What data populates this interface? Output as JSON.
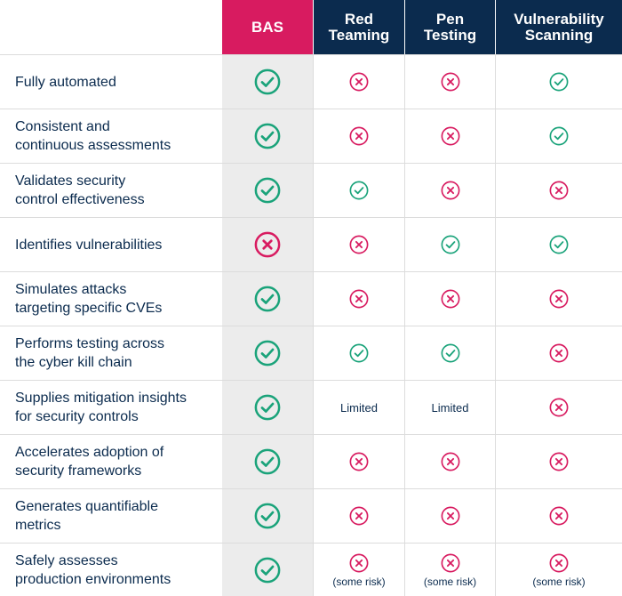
{
  "colors": {
    "brand_pink": "#d81b60",
    "navy": "#0b2b4e",
    "check_green": "#1aa37a",
    "cross_pink": "#d81b60",
    "bas_column_bg": "#ececec"
  },
  "header": {
    "bas": "BAS",
    "col1": "Red\nTeaming",
    "col2": "Pen\nTesting",
    "col3": "Vulnerability\nScanning"
  },
  "rows": [
    {
      "label": "Fully automated",
      "cells": [
        {
          "type": "check"
        },
        {
          "type": "cross"
        },
        {
          "type": "cross"
        },
        {
          "type": "check"
        }
      ]
    },
    {
      "label": "Consistent and\ncontinuous assessments",
      "cells": [
        {
          "type": "check"
        },
        {
          "type": "cross"
        },
        {
          "type": "cross"
        },
        {
          "type": "check"
        }
      ]
    },
    {
      "label": "Validates security\ncontrol effectiveness",
      "cells": [
        {
          "type": "check"
        },
        {
          "type": "check"
        },
        {
          "type": "cross"
        },
        {
          "type": "cross"
        }
      ]
    },
    {
      "label": "Identifies vulnerabilities",
      "cells": [
        {
          "type": "cross"
        },
        {
          "type": "cross"
        },
        {
          "type": "check"
        },
        {
          "type": "check"
        }
      ]
    },
    {
      "label": "Simulates attacks\ntargeting specific CVEs",
      "cells": [
        {
          "type": "check"
        },
        {
          "type": "cross"
        },
        {
          "type": "cross"
        },
        {
          "type": "cross"
        }
      ]
    },
    {
      "label": "Performs testing across\nthe cyber kill chain",
      "cells": [
        {
          "type": "check"
        },
        {
          "type": "check"
        },
        {
          "type": "check"
        },
        {
          "type": "cross"
        }
      ]
    },
    {
      "label": "Supplies mitigation insights\nfor security controls",
      "cells": [
        {
          "type": "check"
        },
        {
          "type": "text",
          "text": "Limited"
        },
        {
          "type": "text",
          "text": "Limited"
        },
        {
          "type": "cross"
        }
      ]
    },
    {
      "label": "Accelerates adoption of\nsecurity frameworks",
      "cells": [
        {
          "type": "check"
        },
        {
          "type": "cross"
        },
        {
          "type": "cross"
        },
        {
          "type": "cross"
        }
      ]
    },
    {
      "label": "Generates quantifiable\nmetrics",
      "cells": [
        {
          "type": "check"
        },
        {
          "type": "cross"
        },
        {
          "type": "cross"
        },
        {
          "type": "cross"
        }
      ]
    },
    {
      "label": "Safely assesses\nproduction environments",
      "cells": [
        {
          "type": "check"
        },
        {
          "type": "cross",
          "note": "(some risk)"
        },
        {
          "type": "cross",
          "note": "(some risk)"
        },
        {
          "type": "cross",
          "note": "(some risk)"
        }
      ]
    }
  ]
}
